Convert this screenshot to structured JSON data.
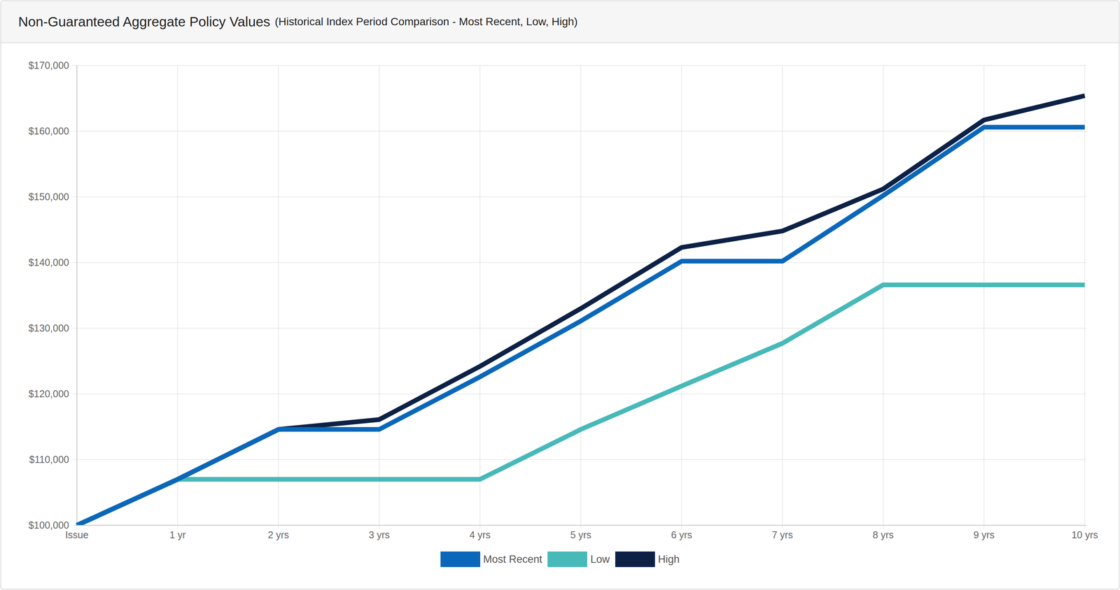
{
  "chart_data": {
    "type": "line",
    "title": "Non-Guaranteed Aggregate Policy Values",
    "subtitle": "(Historical Index Period Comparison - Most Recent, Low, High)",
    "categories": [
      "Issue",
      "1 yr",
      "2 yrs",
      "3 yrs",
      "4 yrs",
      "5 yrs",
      "6 yrs",
      "7 yrs",
      "8 yrs",
      "9 yrs",
      "10 yrs"
    ],
    "series": [
      {
        "name": "Most Recent",
        "color": "#0a67b9",
        "values": [
          100000,
          107000,
          114600,
          114600,
          122600,
          131100,
          140200,
          140200,
          150200,
          160600,
          160600
        ]
      },
      {
        "name": "Low",
        "color": "#47b9b8",
        "values": [
          100000,
          107000,
          107000,
          107000,
          107000,
          114600,
          121200,
          127700,
          136600,
          136600,
          136600
        ]
      },
      {
        "name": "High",
        "color": "#0d2146",
        "values": [
          100000,
          107000,
          114600,
          116100,
          124200,
          133000,
          142300,
          144800,
          151200,
          161700,
          165400
        ]
      }
    ],
    "ylim": [
      100000,
      170000
    ],
    "yticks": [
      {
        "value": 100000,
        "label": "$100,000"
      },
      {
        "value": 110000,
        "label": "$110,000"
      },
      {
        "value": 120000,
        "label": "$120,000"
      },
      {
        "value": 130000,
        "label": "$130,000"
      },
      {
        "value": 140000,
        "label": "$140,000"
      },
      {
        "value": 150000,
        "label": "$150,000"
      },
      {
        "value": 160000,
        "label": "$160,000"
      },
      {
        "value": 170000,
        "label": "$170,000"
      }
    ],
    "grid": true,
    "legend": "bottom"
  }
}
